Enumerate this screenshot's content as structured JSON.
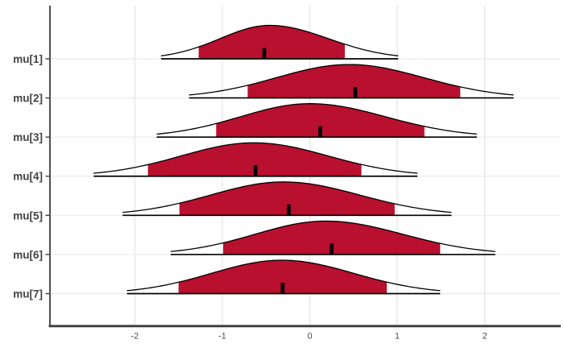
{
  "chart_data": {
    "type": "area",
    "subtype": "ridgeline-density-intervals",
    "title": "",
    "xlabel": "",
    "ylabel": "",
    "grid": "on",
    "legend": "none",
    "xlim": [
      -2.97,
      2.87
    ],
    "x_ticks": [
      -2,
      -1,
      0,
      1,
      2
    ],
    "x_tick_labels": [
      "-2",
      "-1",
      "0",
      "1",
      "2"
    ],
    "series": [
      {
        "name": "mu[1]",
        "median": -0.52,
        "mode": -0.46,
        "tails": [
          -1.7,
          1.01
        ],
        "inner": [
          -1.27,
          0.4
        ]
      },
      {
        "name": "mu[2]",
        "median": 0.52,
        "mode": 0.45,
        "tails": [
          -1.38,
          2.33
        ],
        "inner": [
          -0.71,
          1.72
        ]
      },
      {
        "name": "mu[3]",
        "median": 0.12,
        "mode": 0.0,
        "tails": [
          -1.75,
          1.91
        ],
        "inner": [
          -1.07,
          1.31
        ]
      },
      {
        "name": "mu[4]",
        "median": -0.62,
        "mode": -0.64,
        "tails": [
          -2.47,
          1.23
        ],
        "inner": [
          -1.85,
          0.59
        ]
      },
      {
        "name": "mu[5]",
        "median": -0.24,
        "mode": -0.3,
        "tails": [
          -2.14,
          1.62
        ],
        "inner": [
          -1.49,
          0.97
        ]
      },
      {
        "name": "mu[6]",
        "median": 0.25,
        "mode": 0.18,
        "tails": [
          -1.59,
          2.12
        ],
        "inner": [
          -0.99,
          1.49
        ]
      },
      {
        "name": "mu[7]",
        "median": -0.31,
        "mode": -0.32,
        "tails": [
          -2.09,
          1.49
        ],
        "inner": [
          -1.5,
          0.88
        ]
      }
    ],
    "colors": {
      "fill": "#B8102E",
      "outline": "#000000",
      "baseline": "#000000",
      "median_tick": "#000000",
      "axis": "#3C3C3C",
      "grid_h": "#EBEBEB",
      "grid_v": "#E3E3E3",
      "y_label": "#424242",
      "x_tick_label": "#4D4D4D",
      "background": "#FFFFFF"
    }
  }
}
